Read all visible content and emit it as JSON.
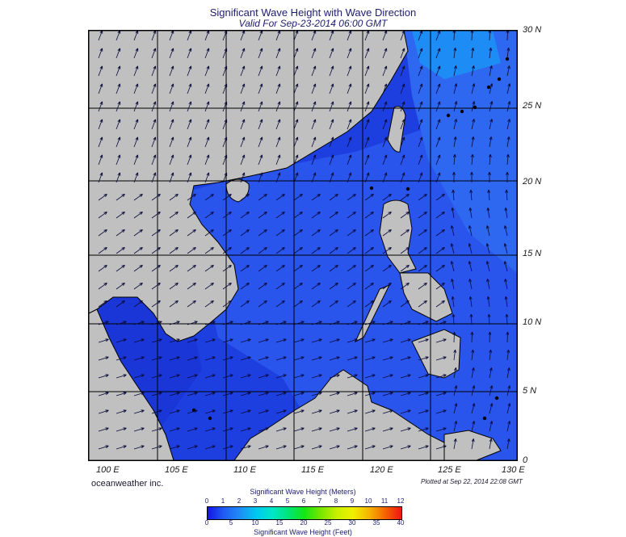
{
  "title": "Significant Wave Height with Wave Direction",
  "subtitle": "Valid For Sep-23-2014 06:00 GMT",
  "latitude_labels": [
    "30 N",
    "25 N",
    "20 N",
    "15 N",
    "10 N",
    "5 N",
    "0"
  ],
  "longitude_labels": [
    "100 E",
    "105 E",
    "110 E",
    "115 E",
    "120 E",
    "125 E",
    "130 E"
  ],
  "credit": "oceanweather inc.",
  "plotted_note": "Plotted at Sep 22, 2014 22:08 GMT",
  "colorbar": {
    "meters_title": "Significant Wave Height (Meters)",
    "feet_title": "Significant Wave Height (Feet)",
    "meters_ticks": [
      "0",
      "1",
      "2",
      "3",
      "4",
      "5",
      "6",
      "7",
      "8",
      "9",
      "10",
      "11",
      "12"
    ],
    "feet_ticks": [
      "0",
      "5",
      "10",
      "15",
      "20",
      "25",
      "30",
      "35",
      "40"
    ],
    "colors": [
      "#1414e6",
      "#1f5cf2",
      "#1f8cf5",
      "#00c8f0",
      "#00e6c8",
      "#00e678",
      "#14e614",
      "#78e600",
      "#c8f000",
      "#f0f000",
      "#f5b400",
      "#f56400",
      "#f01414"
    ]
  },
  "colors": {
    "land": "#c0c0c0",
    "sea_low": "#1e3fe0",
    "sea_mid": "#2e67f0",
    "sea_high": "#1e8cf5",
    "arrow": "#0a0a3a"
  }
}
